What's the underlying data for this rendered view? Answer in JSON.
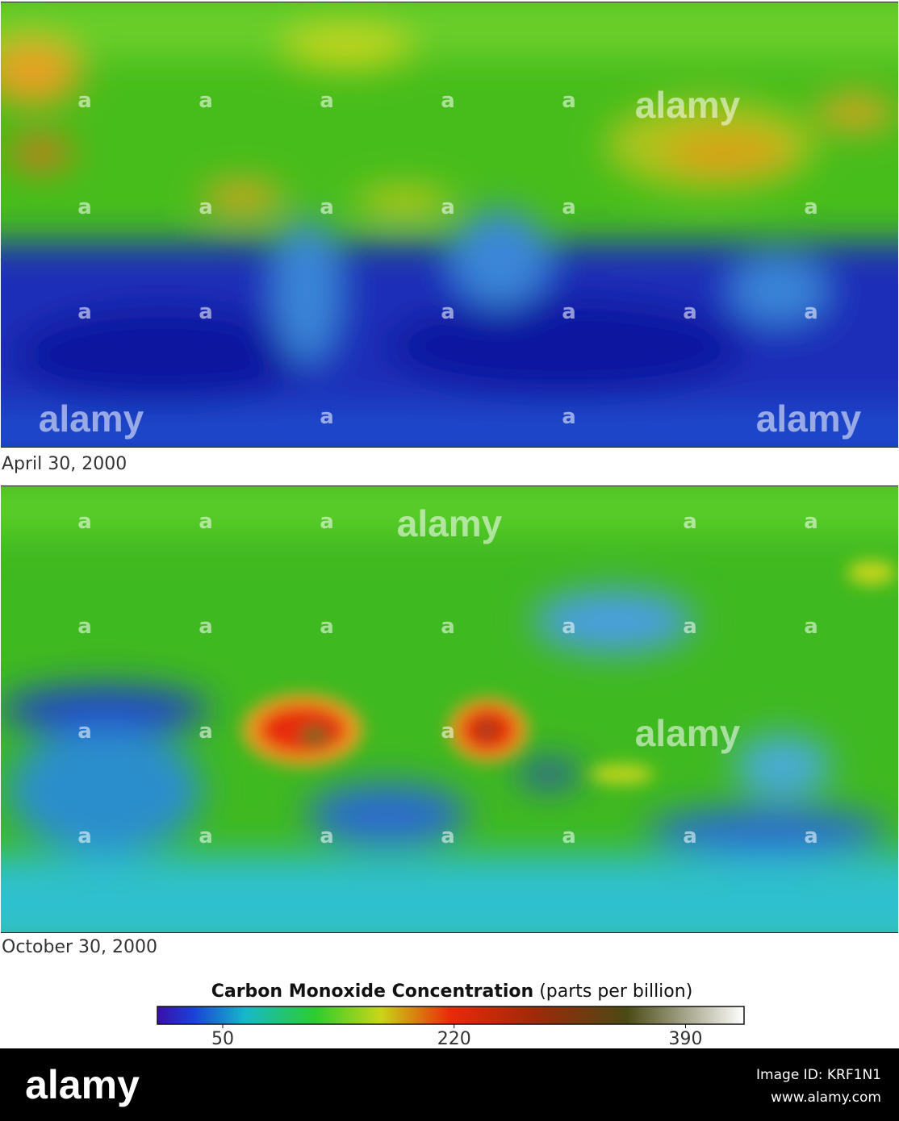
{
  "maps": [
    {
      "date": "April 30, 2000"
    },
    {
      "date": "October 30, 2000"
    }
  ],
  "colorbar": {
    "title": "Carbon Monoxide Concentration",
    "unit": "(parts per billion)",
    "lim": [
      2,
      433
    ],
    "ticks": [
      50,
      220,
      390
    ]
  },
  "watermark": {
    "mark": "alamy",
    "initial": "a",
    "image_id": "Image ID: KRF1N1",
    "url": "www.alamy.com"
  }
}
